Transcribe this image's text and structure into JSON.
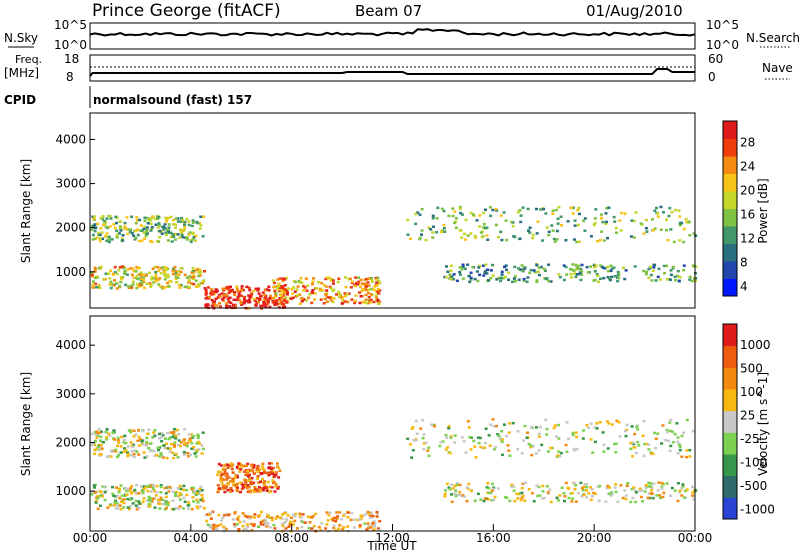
{
  "header": {
    "station": "Prince George (fitACF)",
    "beam": "Beam 07",
    "date": "01/Aug/2010"
  },
  "noise_panel": {
    "left_label": "N.Sky",
    "right_label": "N.Search",
    "left_ticks": [
      "10^5",
      "10^0"
    ],
    "right_ticks": [
      "10^5",
      "10^0"
    ]
  },
  "freq_panel": {
    "left_label_1": "Freq.",
    "left_label_2": "[MHz]",
    "right_label": "Nave",
    "left_ticks": [
      "18",
      "8"
    ],
    "right_ticks": [
      "60",
      "0"
    ]
  },
  "cpid": {
    "label": "CPID",
    "text": "normalsound (fast) 157"
  },
  "chart_data": [
    {
      "type": "heatmap",
      "name": "power",
      "ylabel": "Slant Range [km]",
      "ylim": [
        180,
        4600
      ],
      "yticks": [
        "4000",
        "3000",
        "2000",
        "1000"
      ],
      "xlim": [
        "00:00",
        "24:00"
      ],
      "colorbar_label": "Power [dB]",
      "colorbar_ticks": [
        "28",
        "24",
        "20",
        "16",
        "12",
        "8",
        "4"
      ],
      "colors": [
        "#0018ff",
        "#2146ad",
        "#2a6f7f",
        "#40976b",
        "#7fc242",
        "#c4d62a",
        "#f8c319",
        "#f58a12",
        "#ef3d0e",
        "#e01b1b"
      ],
      "bands": [
        {
          "t0": 0.0,
          "t1": 4.5,
          "r0": 1700,
          "r1": 2300,
          "level": 0.45
        },
        {
          "t0": 0.0,
          "t1": 4.5,
          "r0": 650,
          "r1": 1150,
          "level": 0.6
        },
        {
          "t0": 4.5,
          "t1": 7.8,
          "r0": 200,
          "r1": 700,
          "level": 0.9
        },
        {
          "t0": 7.2,
          "t1": 11.5,
          "r0": 300,
          "r1": 900,
          "level": 0.7
        },
        {
          "t0": 12.5,
          "t1": 24.0,
          "r0": 1700,
          "r1": 2500,
          "level": 0.45
        },
        {
          "t0": 14.0,
          "t1": 24.0,
          "r0": 800,
          "r1": 1200,
          "level": 0.35
        }
      ]
    },
    {
      "type": "heatmap",
      "name": "velocity",
      "ylabel": "Slant Range [km]",
      "xlabel": "Time UT",
      "ylim": [
        180,
        4600
      ],
      "yticks": [
        "4000",
        "3000",
        "2000",
        "1000"
      ],
      "xticks": [
        "00:00",
        "04:00",
        "08:00",
        "12:00",
        "16:00",
        "20:00",
        "00:00"
      ],
      "colorbar_label": "Velocity [m s^-1]",
      "colorbar_ticks": [
        "1000",
        "500",
        "100",
        "25",
        "-25",
        "-100",
        "-500",
        "-1000"
      ],
      "colors": [
        "#2a45d6",
        "#2e6a6a",
        "#38964a",
        "#7dd152",
        "#c8c8c8",
        "#f7b80f",
        "#f28a12",
        "#ee5c12",
        "#e01b1b"
      ],
      "bands": [
        {
          "t0": 0.0,
          "t1": 4.5,
          "r0": 1700,
          "r1": 2300,
          "level": 0.5
        },
        {
          "t0": 0.0,
          "t1": 4.5,
          "r0": 650,
          "r1": 1150,
          "level": 0.5
        },
        {
          "t0": 4.5,
          "t1": 11.5,
          "r0": 200,
          "r1": 600,
          "level": 0.65
        },
        {
          "t0": 5.0,
          "t1": 7.5,
          "r0": 1000,
          "r1": 1600,
          "level": 0.8
        },
        {
          "t0": 12.5,
          "t1": 24.0,
          "r0": 1700,
          "r1": 2500,
          "level": 0.5
        },
        {
          "t0": 14.0,
          "t1": 24.0,
          "r0": 800,
          "r1": 1200,
          "level": 0.5
        }
      ]
    }
  ]
}
